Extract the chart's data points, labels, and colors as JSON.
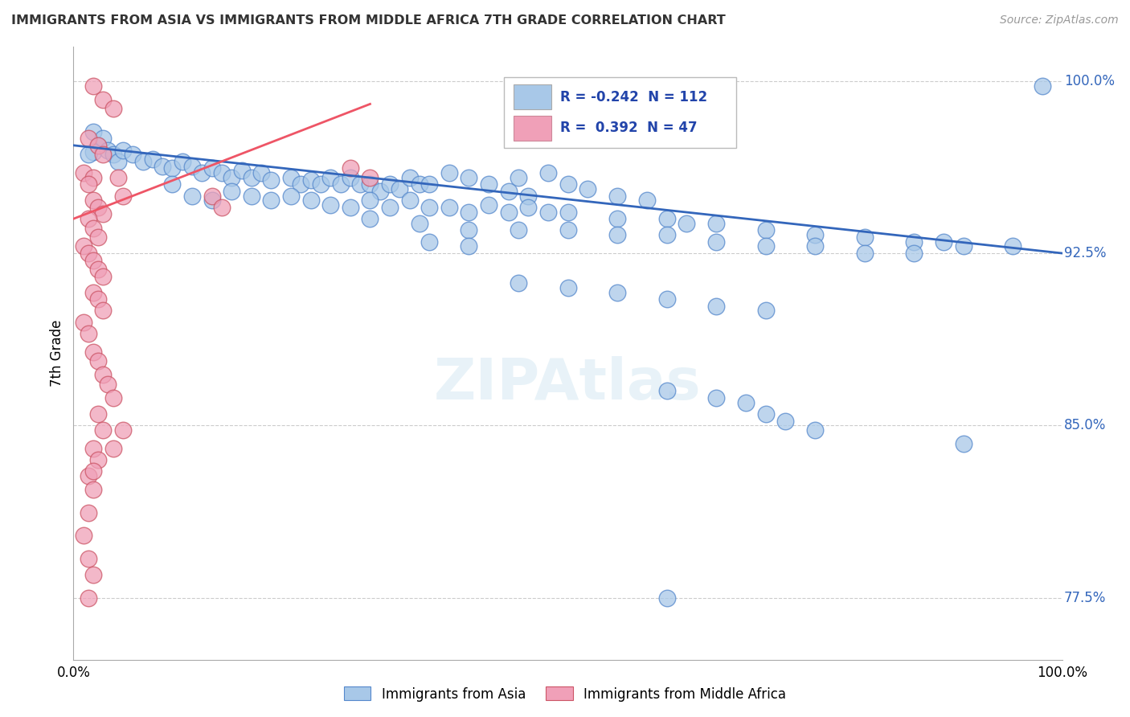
{
  "title": "IMMIGRANTS FROM ASIA VS IMMIGRANTS FROM MIDDLE AFRICA 7TH GRADE CORRELATION CHART",
  "source": "Source: ZipAtlas.com",
  "ylabel": "7th Grade",
  "xlim": [
    0.0,
    1.0
  ],
  "ylim": [
    0.748,
    1.015
  ],
  "yticks": [
    0.775,
    0.85,
    0.925,
    1.0
  ],
  "ytick_labels": [
    "77.5%",
    "85.0%",
    "92.5%",
    "100.0%"
  ],
  "legend_blue_r": "-0.242",
  "legend_blue_n": "112",
  "legend_pink_r": "0.392",
  "legend_pink_n": "47",
  "blue_color": "#a8c8e8",
  "pink_color": "#f0a0b8",
  "blue_line_color": "#3366bb",
  "pink_line_color": "#ee5566",
  "grid_color": "#cccccc",
  "watermark": "ZIPAtlas",
  "blue_line": [
    [
      0.0,
      0.972
    ],
    [
      1.0,
      0.925
    ]
  ],
  "pink_line": [
    [
      0.0,
      0.94
    ],
    [
      0.3,
      0.99
    ]
  ],
  "blue_scatter": [
    [
      0.02,
      0.978
    ],
    [
      0.025,
      0.972
    ],
    [
      0.02,
      0.969
    ],
    [
      0.015,
      0.968
    ],
    [
      0.03,
      0.975
    ],
    [
      0.035,
      0.97
    ],
    [
      0.04,
      0.968
    ],
    [
      0.045,
      0.965
    ],
    [
      0.05,
      0.97
    ],
    [
      0.06,
      0.968
    ],
    [
      0.07,
      0.965
    ],
    [
      0.08,
      0.966
    ],
    [
      0.09,
      0.963
    ],
    [
      0.1,
      0.962
    ],
    [
      0.11,
      0.965
    ],
    [
      0.12,
      0.963
    ],
    [
      0.13,
      0.96
    ],
    [
      0.14,
      0.962
    ],
    [
      0.15,
      0.96
    ],
    [
      0.16,
      0.958
    ],
    [
      0.17,
      0.961
    ],
    [
      0.18,
      0.958
    ],
    [
      0.19,
      0.96
    ],
    [
      0.2,
      0.957
    ],
    [
      0.22,
      0.958
    ],
    [
      0.23,
      0.955
    ],
    [
      0.24,
      0.957
    ],
    [
      0.25,
      0.955
    ],
    [
      0.26,
      0.958
    ],
    [
      0.27,
      0.955
    ],
    [
      0.28,
      0.958
    ],
    [
      0.29,
      0.955
    ],
    [
      0.3,
      0.955
    ],
    [
      0.31,
      0.952
    ],
    [
      0.32,
      0.955
    ],
    [
      0.33,
      0.953
    ],
    [
      0.34,
      0.958
    ],
    [
      0.35,
      0.955
    ],
    [
      0.36,
      0.955
    ],
    [
      0.38,
      0.96
    ],
    [
      0.4,
      0.958
    ],
    [
      0.42,
      0.955
    ],
    [
      0.44,
      0.952
    ],
    [
      0.45,
      0.958
    ],
    [
      0.46,
      0.95
    ],
    [
      0.48,
      0.96
    ],
    [
      0.5,
      0.955
    ],
    [
      0.52,
      0.953
    ],
    [
      0.55,
      0.95
    ],
    [
      0.58,
      0.948
    ],
    [
      0.1,
      0.955
    ],
    [
      0.12,
      0.95
    ],
    [
      0.14,
      0.948
    ],
    [
      0.16,
      0.952
    ],
    [
      0.18,
      0.95
    ],
    [
      0.2,
      0.948
    ],
    [
      0.22,
      0.95
    ],
    [
      0.24,
      0.948
    ],
    [
      0.26,
      0.946
    ],
    [
      0.28,
      0.945
    ],
    [
      0.3,
      0.948
    ],
    [
      0.32,
      0.945
    ],
    [
      0.34,
      0.948
    ],
    [
      0.36,
      0.945
    ],
    [
      0.38,
      0.945
    ],
    [
      0.4,
      0.943
    ],
    [
      0.42,
      0.946
    ],
    [
      0.44,
      0.943
    ],
    [
      0.46,
      0.945
    ],
    [
      0.48,
      0.943
    ],
    [
      0.5,
      0.943
    ],
    [
      0.55,
      0.94
    ],
    [
      0.6,
      0.94
    ],
    [
      0.62,
      0.938
    ],
    [
      0.65,
      0.938
    ],
    [
      0.7,
      0.935
    ],
    [
      0.75,
      0.933
    ],
    [
      0.8,
      0.932
    ],
    [
      0.85,
      0.93
    ],
    [
      0.88,
      0.93
    ],
    [
      0.9,
      0.928
    ],
    [
      0.95,
      0.928
    ],
    [
      0.3,
      0.94
    ],
    [
      0.35,
      0.938
    ],
    [
      0.4,
      0.935
    ],
    [
      0.45,
      0.935
    ],
    [
      0.5,
      0.935
    ],
    [
      0.55,
      0.933
    ],
    [
      0.6,
      0.933
    ],
    [
      0.65,
      0.93
    ],
    [
      0.7,
      0.928
    ],
    [
      0.75,
      0.928
    ],
    [
      0.8,
      0.925
    ],
    [
      0.85,
      0.925
    ],
    [
      0.36,
      0.93
    ],
    [
      0.4,
      0.928
    ],
    [
      0.45,
      0.912
    ],
    [
      0.5,
      0.91
    ],
    [
      0.55,
      0.908
    ],
    [
      0.6,
      0.905
    ],
    [
      0.65,
      0.902
    ],
    [
      0.7,
      0.9
    ],
    [
      0.6,
      0.865
    ],
    [
      0.65,
      0.862
    ],
    [
      0.68,
      0.86
    ],
    [
      0.7,
      0.855
    ],
    [
      0.72,
      0.852
    ],
    [
      0.75,
      0.848
    ],
    [
      0.9,
      0.842
    ],
    [
      0.6,
      0.775
    ],
    [
      0.98,
      0.998
    ]
  ],
  "pink_scatter": [
    [
      0.02,
      0.998
    ],
    [
      0.03,
      0.992
    ],
    [
      0.04,
      0.988
    ],
    [
      0.015,
      0.975
    ],
    [
      0.025,
      0.972
    ],
    [
      0.03,
      0.968
    ],
    [
      0.01,
      0.96
    ],
    [
      0.02,
      0.958
    ],
    [
      0.015,
      0.955
    ],
    [
      0.02,
      0.948
    ],
    [
      0.025,
      0.945
    ],
    [
      0.03,
      0.942
    ],
    [
      0.015,
      0.94
    ],
    [
      0.02,
      0.936
    ],
    [
      0.025,
      0.932
    ],
    [
      0.01,
      0.928
    ],
    [
      0.015,
      0.925
    ],
    [
      0.02,
      0.922
    ],
    [
      0.025,
      0.918
    ],
    [
      0.03,
      0.915
    ],
    [
      0.02,
      0.908
    ],
    [
      0.025,
      0.905
    ],
    [
      0.03,
      0.9
    ],
    [
      0.01,
      0.895
    ],
    [
      0.015,
      0.89
    ],
    [
      0.02,
      0.882
    ],
    [
      0.025,
      0.878
    ],
    [
      0.03,
      0.872
    ],
    [
      0.035,
      0.868
    ],
    [
      0.04,
      0.862
    ],
    [
      0.025,
      0.855
    ],
    [
      0.03,
      0.848
    ],
    [
      0.02,
      0.84
    ],
    [
      0.025,
      0.835
    ],
    [
      0.015,
      0.828
    ],
    [
      0.02,
      0.822
    ],
    [
      0.015,
      0.812
    ],
    [
      0.01,
      0.802
    ],
    [
      0.015,
      0.792
    ],
    [
      0.02,
      0.785
    ],
    [
      0.28,
      0.962
    ],
    [
      0.3,
      0.958
    ],
    [
      0.14,
      0.95
    ],
    [
      0.15,
      0.945
    ],
    [
      0.045,
      0.958
    ],
    [
      0.05,
      0.95
    ],
    [
      0.04,
      0.84
    ],
    [
      0.05,
      0.848
    ],
    [
      0.015,
      0.775
    ],
    [
      0.02,
      0.83
    ]
  ]
}
